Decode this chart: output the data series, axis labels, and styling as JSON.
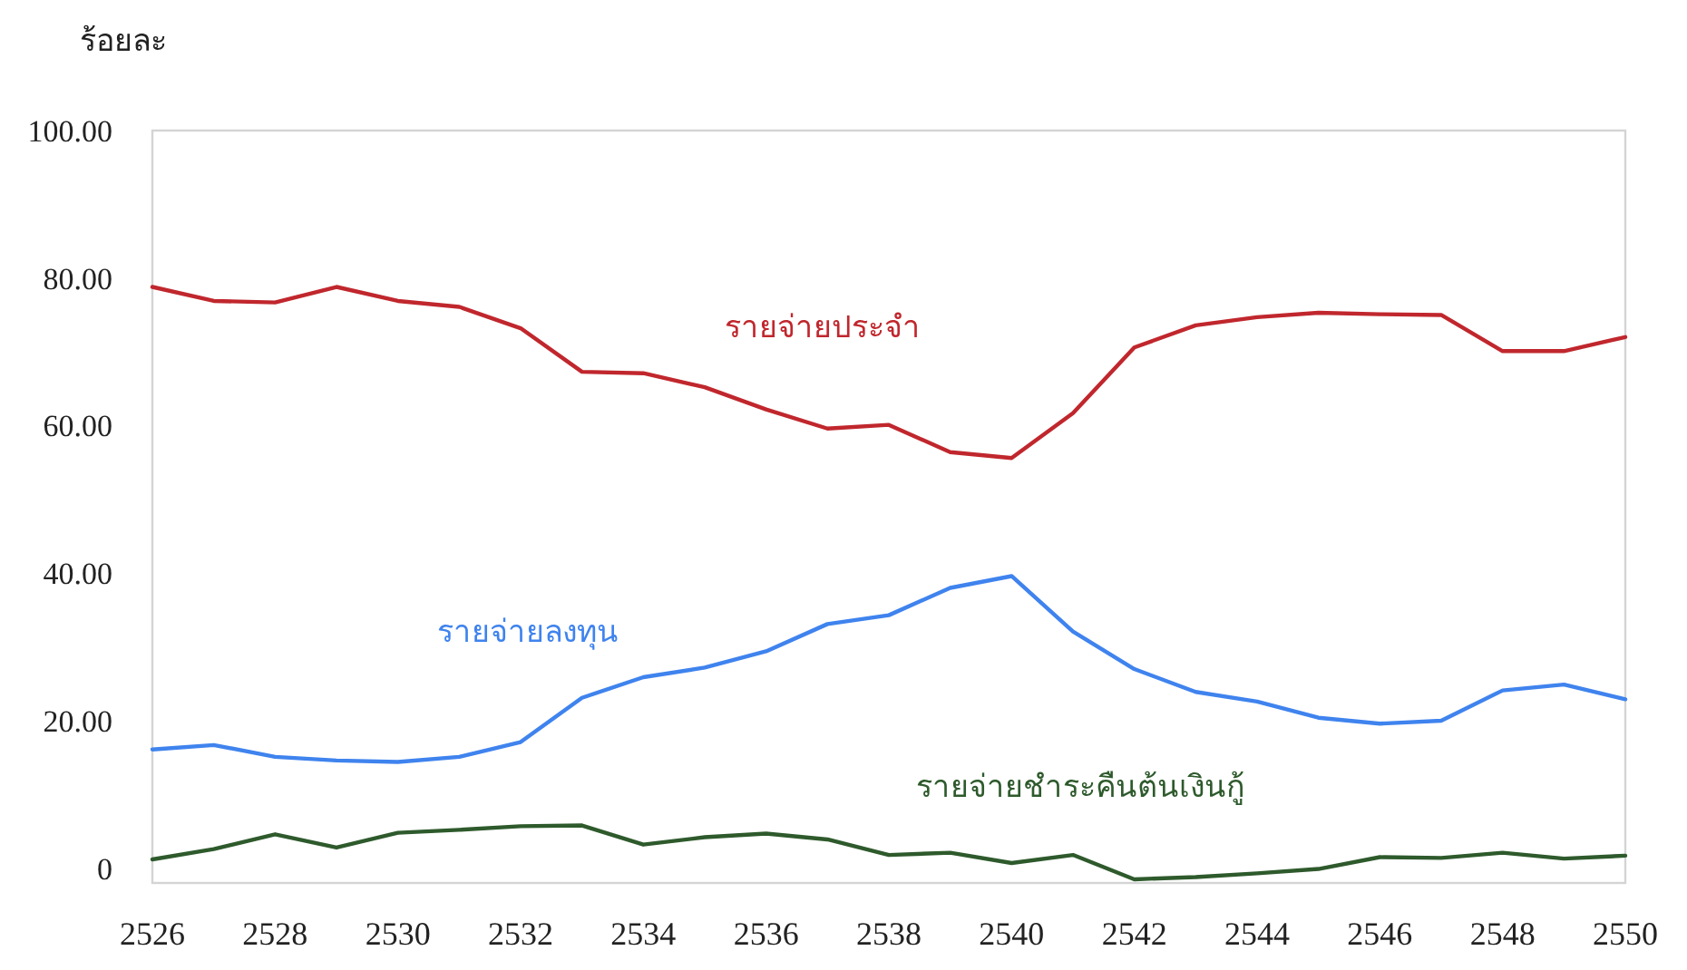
{
  "chart_data": {
    "type": "line",
    "ylabel": "ร้อยละ",
    "x": [
      2526,
      2527,
      2528,
      2529,
      2530,
      2531,
      2532,
      2533,
      2534,
      2535,
      2536,
      2537,
      2538,
      2539,
      2540,
      2541,
      2542,
      2543,
      2544,
      2545,
      2546,
      2547,
      2548,
      2549,
      2550
    ],
    "series": [
      {
        "name": "รายจ่ายประจำ",
        "color": "#c0272d",
        "values": [
          78.8,
          76.9,
          76.7,
          78.8,
          76.9,
          76.1,
          73.2,
          67.3,
          67.1,
          65.2,
          62.2,
          59.6,
          60.1,
          56.4,
          55.6,
          61.7,
          70.6,
          73.6,
          74.7,
          75.3,
          75.1,
          75.0,
          70.1,
          70.1,
          72.0
        ]
      },
      {
        "name": "รายจ่ายลงทุน",
        "color": "#3f83ee",
        "values": [
          16.1,
          16.7,
          15.1,
          14.6,
          14.4,
          15.1,
          17.1,
          23.1,
          25.9,
          27.2,
          29.4,
          33.1,
          34.3,
          38.0,
          39.6,
          32.1,
          27.0,
          23.9,
          22.6,
          20.4,
          19.6,
          20.0,
          24.1,
          24.9,
          22.9
        ]
      },
      {
        "name": "รายจ่ายชำระคืนต้นเงินกู้",
        "color": "#2e5a2c",
        "values": [
          1.2,
          2.6,
          4.6,
          2.8,
          4.8,
          5.2,
          5.7,
          5.8,
          3.2,
          4.2,
          4.7,
          3.9,
          1.8,
          2.1,
          0.7,
          1.8,
          -1.5,
          -1.2,
          -0.7,
          -0.1,
          1.5,
          1.4,
          2.1,
          1.3,
          1.7
        ]
      }
    ],
    "xlim": [
      2526,
      2550
    ],
    "xticks": [
      2526,
      2528,
      2530,
      2532,
      2534,
      2536,
      2538,
      2540,
      2542,
      2544,
      2546,
      2548,
      2550
    ],
    "ylim": [
      -2,
      100
    ],
    "yticks": [
      0,
      {
        "value": 20,
        "label": "20.00"
      },
      {
        "value": 40,
        "label": "40.00"
      },
      {
        "value": 60,
        "label": "60.00"
      },
      {
        "value": 80,
        "label": "80.00"
      },
      {
        "value": 100,
        "label": "100.00"
      }
    ]
  }
}
